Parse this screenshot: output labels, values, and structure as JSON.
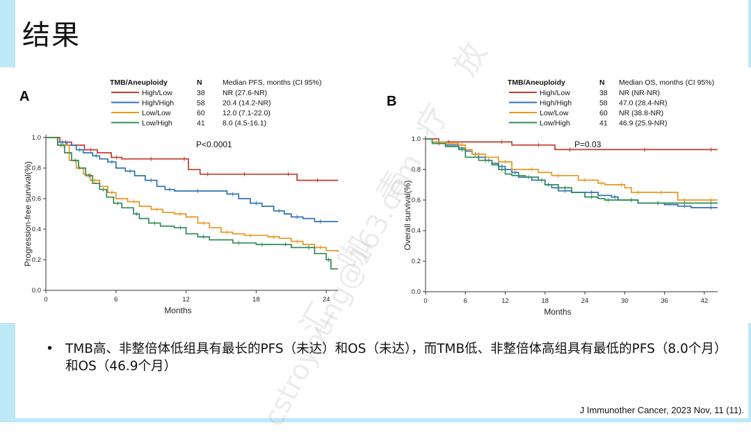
{
  "slide": {
    "title": "结果",
    "bullet": "TMB高、非整倍体低组具有最长的PFS（未达）和OS（未达），而TMB低、非整倍体高组具有最低的PFS（8.0个月）和OS（46.9个月）",
    "bullet_marker": "•",
    "citation": "J Immunother Cancer, 2023 Nov, 11 (11).",
    "watermark": [
      "放",
      "疗",
      "青",
      "咖",
      "汇"
    ],
    "watermark_email": "cstroyoung@163.com"
  },
  "colors": {
    "High/Low": "#c0392b",
    "High/High": "#2f72b5",
    "Low/Low": "#e8961e",
    "Low/High": "#2e8b57"
  },
  "chart_data": [
    {
      "panel": "A",
      "type": "line",
      "step": true,
      "title": "",
      "xlabel": "Months",
      "ylabel": "Progression-free survival(%)",
      "xlim": [
        0,
        25
      ],
      "ylim": [
        0,
        1
      ],
      "xticks": [
        0,
        6,
        12,
        18,
        24
      ],
      "yticks": [
        "0.0",
        "0.2",
        "0.4",
        "0.6",
        "0.8",
        "1.0"
      ],
      "annotation": "P<0.0001",
      "legend_header": [
        "TMB/Aneuploidy",
        "N",
        "Median PFS, months (CI 95%)"
      ],
      "series": [
        {
          "name": "High/Low",
          "n": "38",
          "median": "NR   (27.6-NR)",
          "x": [
            0,
            1.2,
            2.2,
            3.3,
            4.4,
            5.6,
            6.5,
            8,
            10,
            11.5,
            12.2,
            13.2,
            14.5,
            16,
            18,
            20,
            21.5,
            22.5,
            24,
            25
          ],
          "y": [
            1.0,
            0.97,
            0.95,
            0.92,
            0.9,
            0.87,
            0.86,
            0.86,
            0.86,
            0.86,
            0.79,
            0.76,
            0.76,
            0.76,
            0.76,
            0.76,
            0.72,
            0.72,
            0.72,
            0.72
          ]
        },
        {
          "name": "High/High",
          "n": "58",
          "median": "20.4 (14.2-NR)",
          "x": [
            0,
            1,
            1.8,
            2.6,
            3.2,
            4,
            4.6,
            5.3,
            6,
            6.8,
            7.6,
            8.5,
            9.5,
            10.2,
            11,
            12,
            14,
            15.5,
            16.5,
            17.5,
            18.5,
            19.5,
            20.4,
            21,
            22,
            23,
            24,
            25
          ],
          "y": [
            1.0,
            0.97,
            0.95,
            0.92,
            0.9,
            0.88,
            0.86,
            0.84,
            0.8,
            0.78,
            0.75,
            0.72,
            0.68,
            0.66,
            0.65,
            0.65,
            0.65,
            0.63,
            0.6,
            0.57,
            0.55,
            0.52,
            0.5,
            0.48,
            0.47,
            0.45,
            0.45,
            0.45
          ]
        },
        {
          "name": "Low/Low",
          "n": "60",
          "median": "12.0 (7.1-22.0)",
          "x": [
            0,
            1,
            2,
            2.6,
            3.2,
            3.8,
            4.6,
            5.3,
            6,
            7,
            8,
            9,
            10,
            11,
            12,
            13,
            14,
            15,
            16,
            17,
            18,
            19,
            20,
            21,
            22,
            23,
            24,
            25
          ],
          "y": [
            1.0,
            0.95,
            0.85,
            0.8,
            0.76,
            0.72,
            0.68,
            0.64,
            0.6,
            0.58,
            0.55,
            0.53,
            0.51,
            0.5,
            0.48,
            0.44,
            0.41,
            0.38,
            0.37,
            0.36,
            0.36,
            0.35,
            0.34,
            0.32,
            0.3,
            0.28,
            0.26,
            0.25
          ]
        },
        {
          "name": "Low/High",
          "n": "41",
          "median": "8.0  (4.5-16.1)",
          "x": [
            0,
            1,
            1.6,
            2.2,
            2.8,
            3.4,
            4,
            4.6,
            5.2,
            5.8,
            6.5,
            7.5,
            8,
            8.8,
            9.8,
            11,
            12,
            13,
            14,
            16,
            17,
            18,
            19,
            20,
            21,
            22,
            23,
            24,
            24.4,
            25
          ],
          "y": [
            1.0,
            0.95,
            0.9,
            0.85,
            0.8,
            0.75,
            0.7,
            0.66,
            0.61,
            0.57,
            0.54,
            0.5,
            0.47,
            0.44,
            0.42,
            0.41,
            0.37,
            0.35,
            0.33,
            0.31,
            0.31,
            0.3,
            0.3,
            0.3,
            0.28,
            0.28,
            0.24,
            0.2,
            0.14,
            0.14
          ]
        }
      ]
    },
    {
      "panel": "B",
      "type": "line",
      "step": true,
      "title": "",
      "xlabel": "Months",
      "ylabel": "Overall survival(%)",
      "xlim": [
        0,
        44
      ],
      "ylim": [
        0,
        1
      ],
      "xticks": [
        0,
        6,
        12,
        18,
        24,
        30,
        36,
        42
      ],
      "yticks": [
        "0.0",
        "0.2",
        "0.4",
        "0.6",
        "0.8",
        "1.0"
      ],
      "annotation": "P=0.03",
      "legend_header": [
        "TMB/Aneuploidy",
        "N",
        "Median OS, months (CI 95%)"
      ],
      "series": [
        {
          "name": "High/Low",
          "n": "38",
          "median": "NR   (NR-NR)",
          "x": [
            0,
            2,
            5,
            10,
            13,
            15,
            19,
            19.5,
            24,
            30,
            36,
            42,
            44
          ],
          "y": [
            1.0,
            0.98,
            0.98,
            0.98,
            0.96,
            0.96,
            0.96,
            0.93,
            0.93,
            0.93,
            0.93,
            0.93,
            0.93
          ]
        },
        {
          "name": "High/High",
          "n": "58",
          "median": "47.0 (28.4-NR)",
          "x": [
            0,
            1,
            3,
            5,
            6,
            7,
            8,
            9,
            10,
            11,
            12,
            13,
            14,
            15,
            16,
            18,
            19,
            20,
            22,
            24,
            26,
            28,
            29,
            30,
            32,
            34,
            36,
            38,
            40,
            42,
            44
          ],
          "y": [
            1.0,
            0.98,
            0.96,
            0.94,
            0.92,
            0.9,
            0.88,
            0.86,
            0.84,
            0.82,
            0.8,
            0.78,
            0.75,
            0.75,
            0.73,
            0.7,
            0.68,
            0.66,
            0.65,
            0.65,
            0.63,
            0.62,
            0.6,
            0.6,
            0.58,
            0.58,
            0.57,
            0.56,
            0.55,
            0.55,
            0.55
          ]
        },
        {
          "name": "Low/Low",
          "n": "60",
          "median": "NR   (38.8-NR)",
          "x": [
            0,
            1,
            3,
            5,
            6,
            7,
            9,
            11,
            13,
            15,
            17,
            19,
            21,
            23,
            25,
            26,
            27,
            29,
            30,
            31,
            33,
            35,
            36,
            38,
            40,
            42,
            44
          ],
          "y": [
            1.0,
            0.98,
            0.97,
            0.96,
            0.93,
            0.9,
            0.88,
            0.85,
            0.8,
            0.8,
            0.78,
            0.76,
            0.76,
            0.73,
            0.73,
            0.71,
            0.7,
            0.7,
            0.68,
            0.65,
            0.65,
            0.65,
            0.65,
            0.6,
            0.6,
            0.6,
            0.6
          ]
        },
        {
          "name": "Low/High",
          "n": "41",
          "median": "46.9 (25.9-NR)",
          "x": [
            0,
            1,
            3,
            5,
            6,
            8,
            10,
            11,
            12,
            13,
            15,
            17,
            18,
            20,
            22,
            24,
            26,
            27,
            28,
            30,
            32,
            34,
            36,
            38,
            40,
            42,
            44
          ],
          "y": [
            1.0,
            0.97,
            0.95,
            0.93,
            0.88,
            0.86,
            0.83,
            0.8,
            0.77,
            0.76,
            0.75,
            0.73,
            0.7,
            0.68,
            0.65,
            0.62,
            0.61,
            0.6,
            0.6,
            0.6,
            0.58,
            0.58,
            0.58,
            0.58,
            0.58,
            0.58,
            0.58
          ]
        }
      ]
    }
  ]
}
